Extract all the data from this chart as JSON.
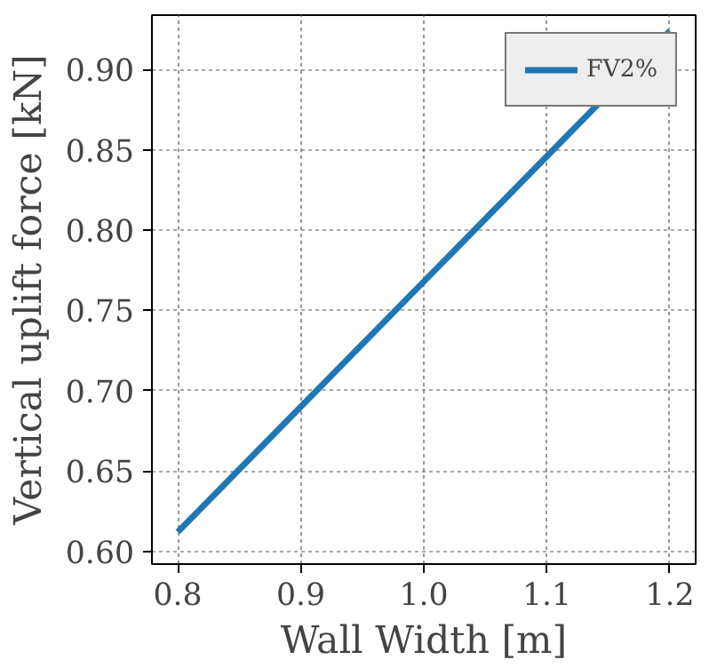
{
  "chart_data": {
    "type": "line",
    "xlabel": "Wall Width [m]",
    "ylabel": "Vertical uplift force [kN]",
    "x": [
      0.8,
      1.2
    ],
    "series": [
      {
        "name": "FV2%",
        "color": "#1f77b4",
        "values": [
          0.612,
          0.924
        ]
      }
    ],
    "xlim": [
      0.779,
      1.221
    ],
    "ylim": [
      0.592,
      0.934
    ],
    "xticks": [
      {
        "value": 0.8,
        "label": "0.8"
      },
      {
        "value": 0.9,
        "label": "0.9"
      },
      {
        "value": 1.0,
        "label": "1.0"
      },
      {
        "value": 1.1,
        "label": "1.1"
      },
      {
        "value": 1.2,
        "label": "1.2"
      }
    ],
    "yticks": [
      {
        "value": 0.6,
        "label": "0.60"
      },
      {
        "value": 0.65,
        "label": "0.65"
      },
      {
        "value": 0.7,
        "label": "0.70"
      },
      {
        "value": 0.75,
        "label": "0.75"
      },
      {
        "value": 0.8,
        "label": "0.80"
      },
      {
        "value": 0.85,
        "label": "0.85"
      },
      {
        "value": 0.9,
        "label": "0.90"
      }
    ],
    "grid": true,
    "legend": "top right",
    "marker": "none",
    "line_style": "solid"
  }
}
